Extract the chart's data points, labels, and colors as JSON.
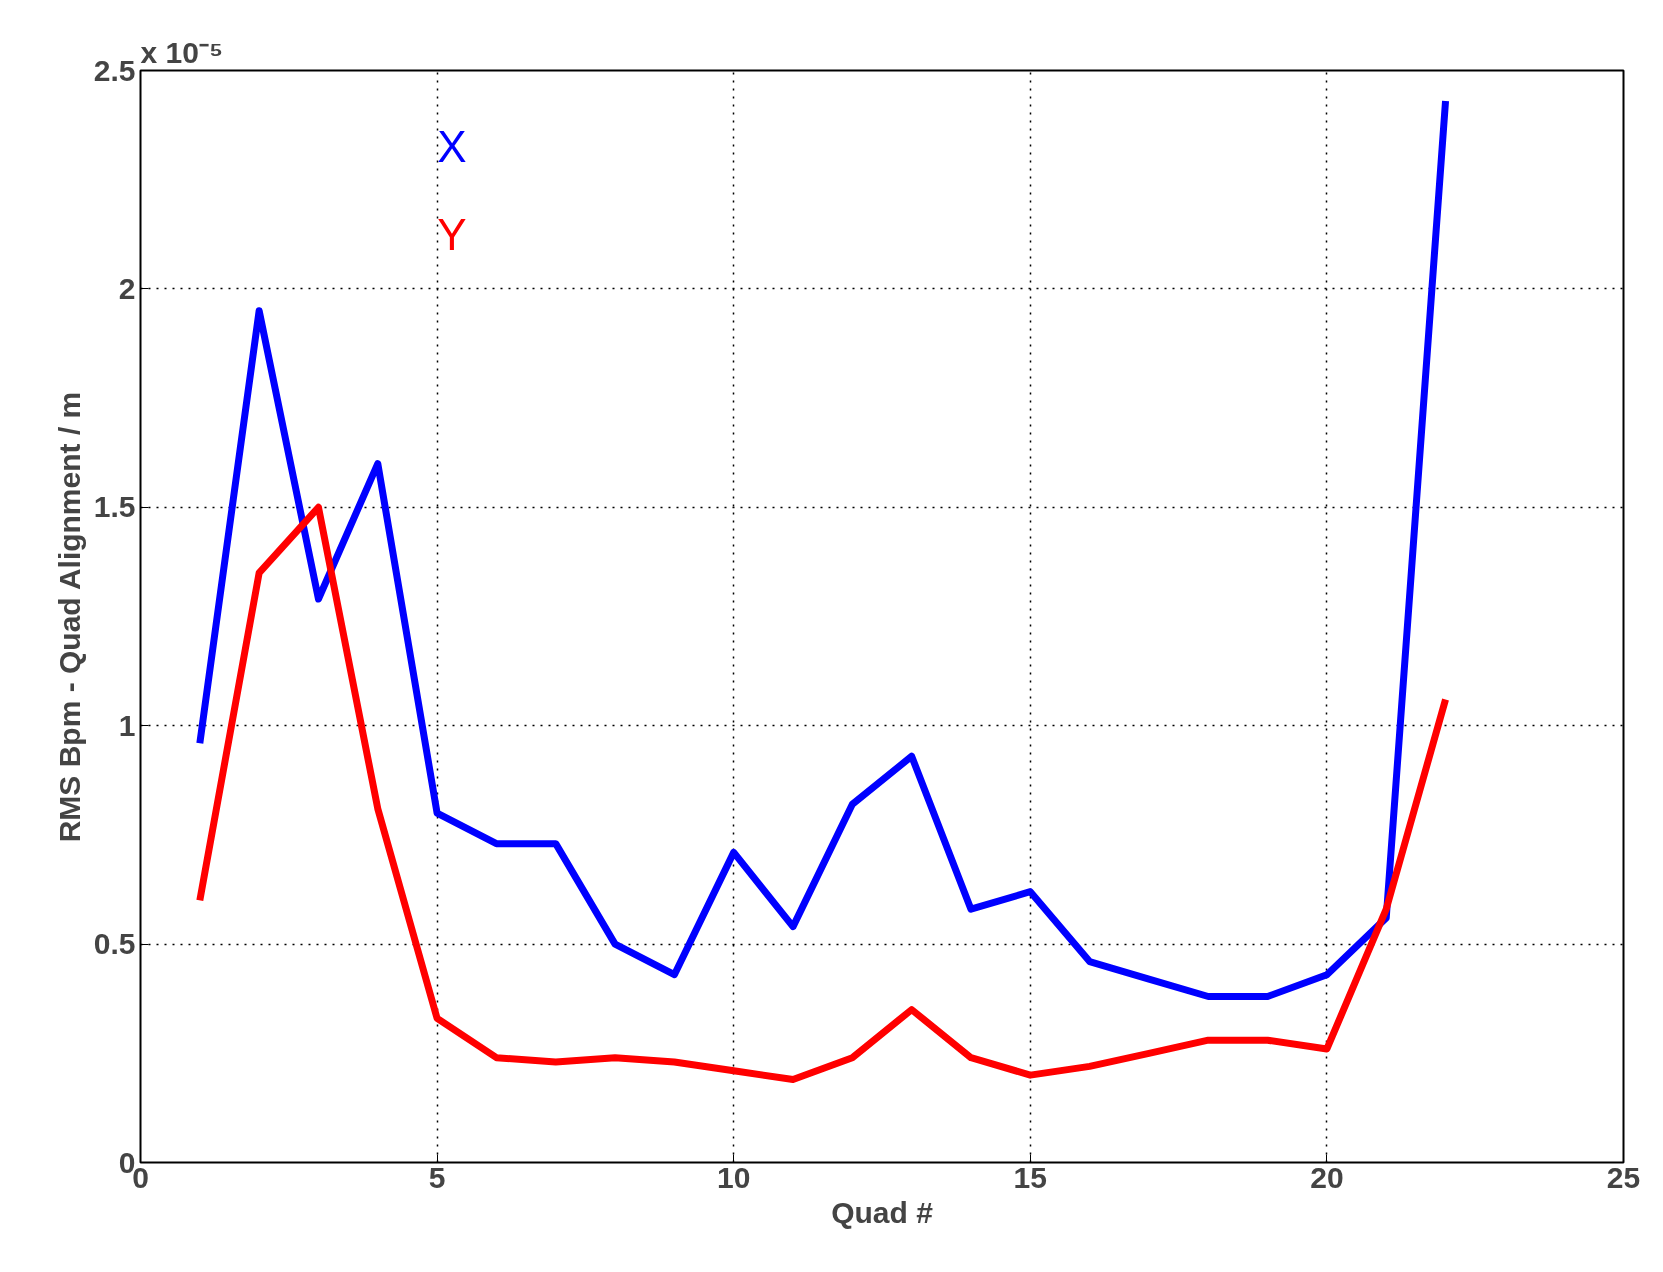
{
  "chart_data": {
    "type": "line",
    "xlabel": "Quad #",
    "ylabel": "RMS Bpm - Quad Alignment / m",
    "annotations": [
      "x 10⁻⁵"
    ],
    "x": [
      1,
      2,
      3,
      4,
      5,
      6,
      7,
      8,
      9,
      10,
      11,
      12,
      13,
      14,
      15,
      16,
      17,
      18,
      19,
      20,
      21,
      22
    ],
    "series": [
      {
        "name": "X",
        "color": "#0000ff",
        "values": [
          0.96,
          1.95,
          1.29,
          1.6,
          0.8,
          0.73,
          0.73,
          0.5,
          0.43,
          0.71,
          0.54,
          0.82,
          0.93,
          0.58,
          0.62,
          0.46,
          0.42,
          0.38,
          0.38,
          0.43,
          0.56,
          2.43
        ]
      },
      {
        "name": "Y",
        "color": "#ff0000",
        "values": [
          0.6,
          1.35,
          1.5,
          0.81,
          0.33,
          0.24,
          0.23,
          0.24,
          0.23,
          0.21,
          0.19,
          0.24,
          0.35,
          0.24,
          0.2,
          0.22,
          0.25,
          0.28,
          0.28,
          0.26,
          0.58,
          1.06
        ]
      }
    ],
    "xlim": [
      0,
      25
    ],
    "xticks": [
      0,
      5,
      10,
      15,
      20,
      25
    ],
    "ylim": [
      0,
      2.5
    ],
    "yticks": [
      0,
      0.5,
      1,
      1.5,
      2,
      2.5
    ],
    "grid": true,
    "line_style": "solid",
    "marker": "none",
    "legend": false
  }
}
